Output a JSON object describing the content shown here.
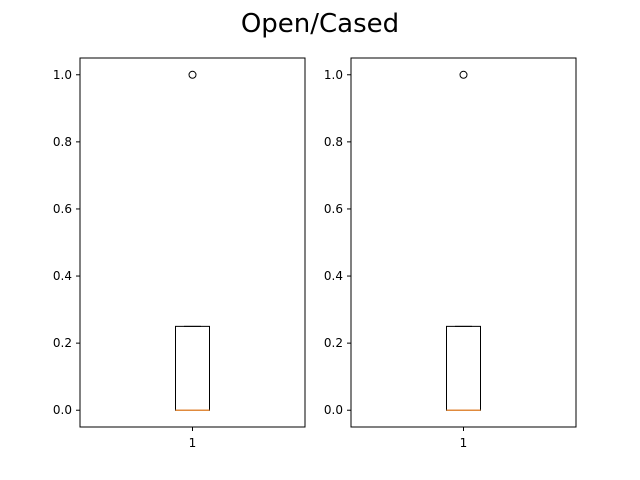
{
  "title": "Open/Cased",
  "colors": {
    "box": "#000000",
    "median": "#e08a3c",
    "flier": "#000000",
    "background": "#ffffff"
  },
  "chart_data": [
    {
      "type": "box",
      "categories": [
        "1"
      ],
      "ylim": [
        -0.05,
        1.05
      ],
      "yticks": [
        "0.0",
        "0.2",
        "0.4",
        "0.6",
        "0.8",
        "1.0"
      ],
      "ytick_values": [
        0.0,
        0.2,
        0.4,
        0.6,
        0.8,
        1.0
      ],
      "boxes": [
        {
          "whisker_low": 0.0,
          "q1": 0.0,
          "median": 0.0,
          "q3": 0.25,
          "whisker_high": 0.25,
          "fliers": [
            1.0
          ]
        }
      ],
      "grid": false
    },
    {
      "type": "box",
      "categories": [
        "1"
      ],
      "ylim": [
        -0.05,
        1.05
      ],
      "yticks": [
        "0.0",
        "0.2",
        "0.4",
        "0.6",
        "0.8",
        "1.0"
      ],
      "ytick_values": [
        0.0,
        0.2,
        0.4,
        0.6,
        0.8,
        1.0
      ],
      "boxes": [
        {
          "whisker_low": 0.0,
          "q1": 0.0,
          "median": 0.0,
          "q3": 0.25,
          "whisker_high": 0.25,
          "fliers": [
            1.0
          ]
        }
      ],
      "grid": false
    }
  ]
}
